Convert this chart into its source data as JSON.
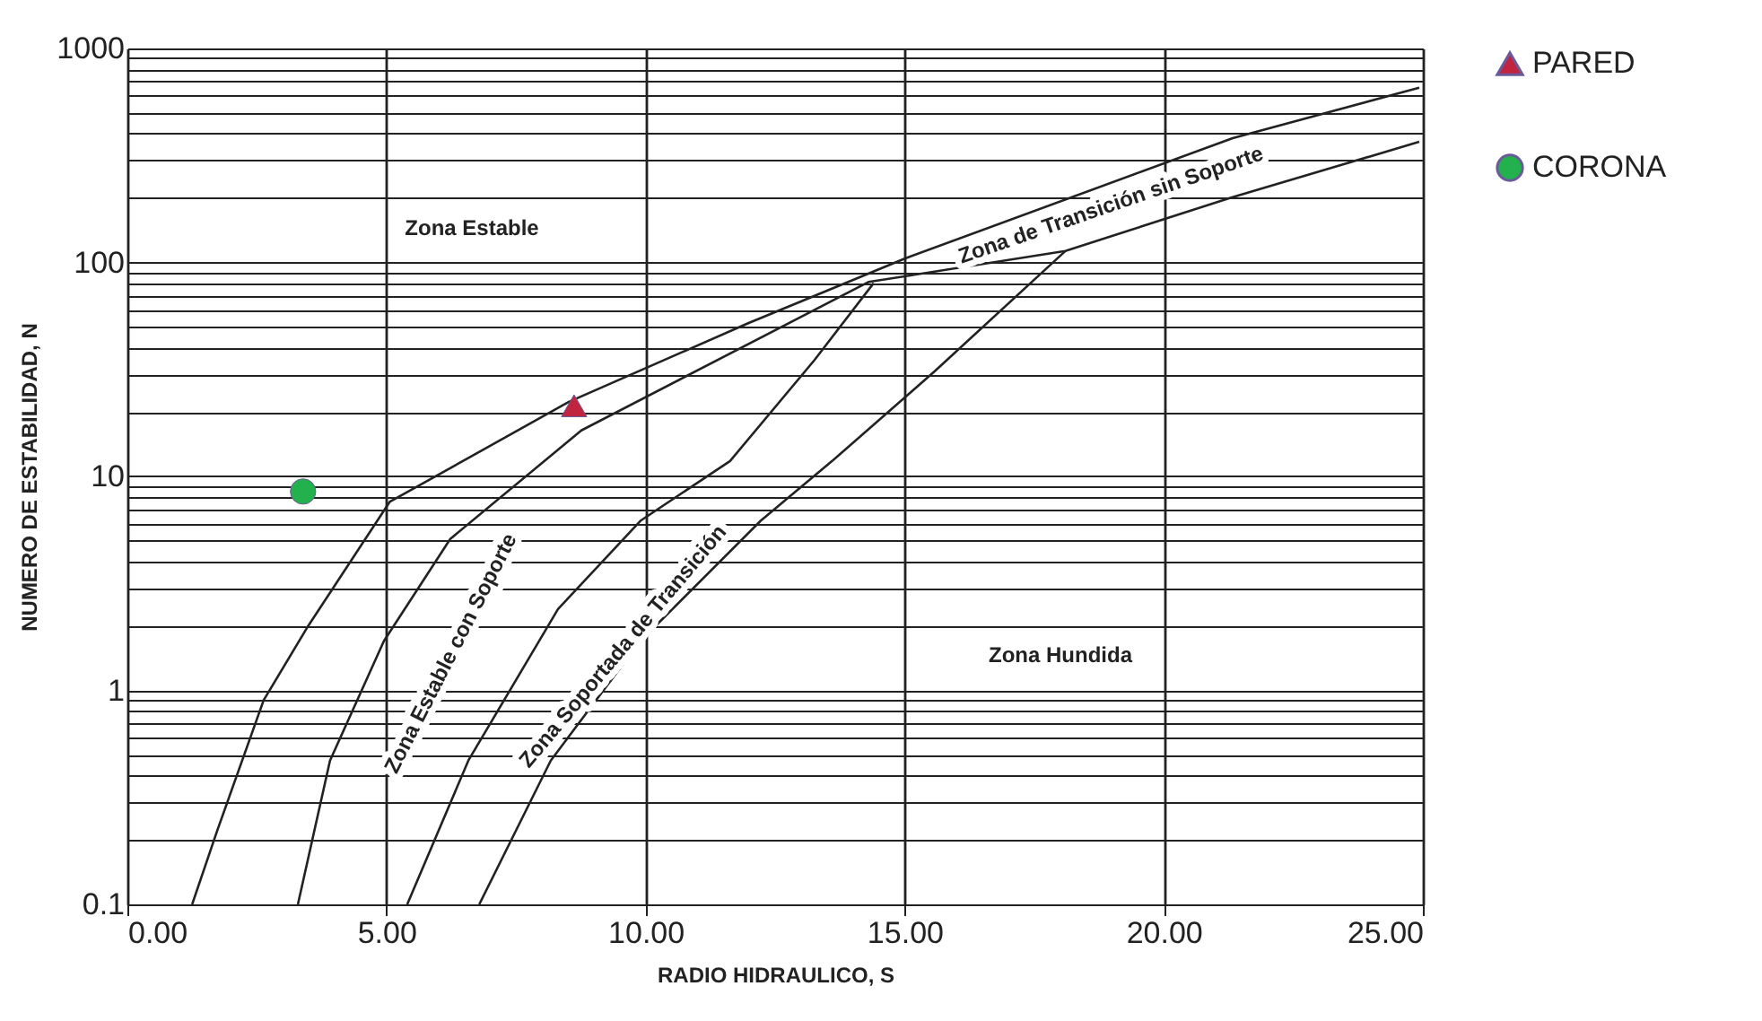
{
  "chart_data": {
    "type": "line",
    "xlabel": "RADIO HIDRAULICO, S",
    "ylabel": "NUMERO DE ESTABILIDAD, N",
    "log": "y",
    "grid": true,
    "legend": "right",
    "xlim": [
      0,
      25
    ],
    "xticks": [
      {
        "value": 0,
        "label": "0.00"
      },
      {
        "value": 5,
        "label": "5.00"
      },
      {
        "value": 10,
        "label": "10.00"
      },
      {
        "value": 15,
        "label": "15.00"
      },
      {
        "value": 20,
        "label": "20.00"
      },
      {
        "value": 25,
        "label": "25.00"
      }
    ],
    "ylim": [
      0.1,
      1000
    ],
    "yticks": [
      0.1,
      {
        "value": 0.2,
        "label": null
      },
      {
        "value": 0.3,
        "label": null
      },
      {
        "value": 0.4,
        "label": null
      },
      {
        "value": 0.5,
        "label": null
      },
      {
        "value": 0.6,
        "label": null
      },
      {
        "value": 0.7,
        "label": null
      },
      {
        "value": 0.8,
        "label": null
      },
      {
        "value": 0.9,
        "label": null
      },
      1,
      {
        "value": 2,
        "label": null
      },
      {
        "value": 3,
        "label": null
      },
      {
        "value": 4,
        "label": null
      },
      {
        "value": 5,
        "label": null
      },
      {
        "value": 6,
        "label": null
      },
      {
        "value": 7,
        "label": null
      },
      {
        "value": 8,
        "label": null
      },
      {
        "value": 9,
        "label": null
      },
      10,
      {
        "value": 20,
        "label": null
      },
      {
        "value": 30,
        "label": null
      },
      {
        "value": 40,
        "label": null
      },
      {
        "value": 50,
        "label": null
      },
      {
        "value": 60,
        "label": null
      },
      {
        "value": 70,
        "label": null
      },
      {
        "value": 80,
        "label": null
      },
      {
        "value": 90,
        "label": null
      },
      100,
      {
        "value": 200,
        "label": null
      },
      {
        "value": 300,
        "label": null
      },
      {
        "value": 400,
        "label": null
      },
      {
        "value": 500,
        "label": null
      },
      {
        "value": 600,
        "label": null
      },
      {
        "value": 700,
        "label": null
      },
      {
        "value": 800,
        "label": null
      },
      {
        "value": 900,
        "label": null
      },
      1000
    ],
    "annotations": [
      "Zona Estable",
      "Zona de Transición sin Soporte",
      "Zona Estable con Soporte",
      "Zona Soportada de Transición",
      "Zona Hundida"
    ],
    "series": [
      {
        "color": "#222222",
        "line_style": "solid",
        "x": [
          1.25,
          1.73,
          2.63,
          3.46,
          5.06,
          8.52,
          11.98,
          14.99,
          21.33,
          24.93
        ],
        "values": [
          0.1,
          0.22,
          0.9,
          1.95,
          7.6,
          22.3,
          52,
          104,
          381,
          655
        ]
      },
      {
        "color": "#222222",
        "line_style": "solid",
        "x": [
          3.29,
          3.91,
          4.95,
          6.23,
          8.76,
          14.3,
          18.1,
          21.3,
          24.93
        ],
        "values": [
          0.1,
          0.47,
          1.7,
          5.1,
          16.4,
          81,
          113,
          201,
          366
        ]
      },
      {
        "color": "#222222",
        "line_style": "solid",
        "x": [
          5.4,
          6.58,
          8.31,
          9.9,
          11.63,
          13.26,
          14.4
        ],
        "values": [
          0.1,
          0.47,
          2.4,
          6.2,
          11.8,
          35,
          80
        ]
      },
      {
        "color": "#222222",
        "line_style": "solid",
        "x": [
          6.79,
          8.17,
          9.9,
          12.22,
          13.6,
          15.58,
          18.1
        ],
        "values": [
          0.1,
          0.47,
          1.7,
          6.2,
          11.8,
          31,
          113
        ]
      },
      {
        "type": "scatter",
        "name": "PARED",
        "color": "#c0243f",
        "marker": "triangle",
        "x": [
          8.62
        ],
        "values": [
          21.4
        ]
      },
      {
        "type": "scatter",
        "name": "CORONA",
        "color": "#22b14c",
        "marker": "circle",
        "x": [
          3.39
        ],
        "values": [
          8.5
        ]
      }
    ]
  }
}
